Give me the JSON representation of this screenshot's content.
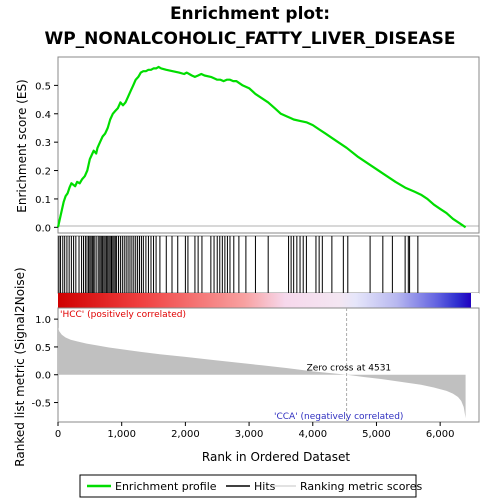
{
  "title_line1": "Enrichment plot:",
  "title_line2": "WP_NONALCOHOLIC_FATTY_LIVER_DISEASE",
  "colors": {
    "enrichment_line": "#00dd00",
    "hits": "#000000",
    "metric_fill": "#c0c0c0",
    "pos_label": "#e00000",
    "neg_label": "#3030c0",
    "zero_cross_line": "#aaaaaa",
    "ranking_legend": "#d8d8d8"
  },
  "chart_data": [
    {
      "type": "line",
      "name": "enrichment-profile",
      "ylabel": "Enrichment score (ES)",
      "xlim": [
        0,
        6500
      ],
      "ylim": [
        -0.02,
        0.6
      ],
      "yticks": [
        "0.0",
        "0.1",
        "0.2",
        "0.3",
        "0.4",
        "0.5"
      ],
      "ytick_values": [
        0.0,
        0.1,
        0.2,
        0.3,
        0.4,
        0.5
      ],
      "grid": false,
      "x": [
        0,
        30,
        60,
        90,
        120,
        150,
        180,
        210,
        240,
        270,
        300,
        340,
        380,
        420,
        460,
        500,
        520,
        540,
        560,
        600,
        620,
        660,
        700,
        740,
        780,
        820,
        860,
        900,
        940,
        980,
        1020,
        1060,
        1100,
        1140,
        1180,
        1220,
        1260,
        1300,
        1340,
        1380,
        1420,
        1460,
        1500,
        1540,
        1580,
        1620,
        1700,
        1800,
        1900,
        1980,
        2020,
        2060,
        2100,
        2150,
        2200,
        2250,
        2300,
        2400,
        2450,
        2500,
        2550,
        2600,
        2650,
        2700,
        2750,
        2800,
        2900,
        3000,
        3100,
        3200,
        3300,
        3400,
        3500,
        3600,
        3650,
        3700,
        3800,
        3900,
        4000,
        4100,
        4200,
        4300,
        4400,
        4531,
        4700,
        4900,
        5100,
        5300,
        5450,
        5500,
        5600,
        5700,
        5800,
        5900,
        6000,
        6100,
        6200,
        6300,
        6400
      ],
      "y": [
        0.0,
        0.03,
        0.06,
        0.09,
        0.11,
        0.12,
        0.14,
        0.155,
        0.15,
        0.145,
        0.16,
        0.155,
        0.17,
        0.18,
        0.2,
        0.24,
        0.25,
        0.26,
        0.27,
        0.26,
        0.28,
        0.3,
        0.32,
        0.33,
        0.35,
        0.38,
        0.4,
        0.41,
        0.42,
        0.44,
        0.43,
        0.44,
        0.46,
        0.48,
        0.5,
        0.52,
        0.53,
        0.545,
        0.55,
        0.55,
        0.555,
        0.555,
        0.56,
        0.56,
        0.565,
        0.56,
        0.555,
        0.55,
        0.545,
        0.54,
        0.545,
        0.54,
        0.535,
        0.53,
        0.535,
        0.54,
        0.535,
        0.53,
        0.525,
        0.52,
        0.52,
        0.515,
        0.52,
        0.52,
        0.515,
        0.515,
        0.5,
        0.49,
        0.47,
        0.455,
        0.44,
        0.42,
        0.4,
        0.39,
        0.385,
        0.38,
        0.375,
        0.37,
        0.36,
        0.345,
        0.33,
        0.315,
        0.3,
        0.28,
        0.25,
        0.22,
        0.19,
        0.16,
        0.14,
        0.135,
        0.125,
        0.115,
        0.1,
        0.08,
        0.065,
        0.05,
        0.03,
        0.015,
        0.0
      ]
    },
    {
      "type": "barcode",
      "name": "hits",
      "positions": [
        15,
        40,
        75,
        105,
        140,
        175,
        210,
        245,
        280,
        330,
        370,
        400,
        430,
        455,
        480,
        500,
        520,
        540,
        560,
        580,
        610,
        640,
        660,
        680,
        700,
        720,
        740,
        760,
        780,
        800,
        820,
        840,
        860,
        880,
        900,
        920,
        950,
        980,
        1010,
        1040,
        1070,
        1100,
        1130,
        1160,
        1190,
        1220,
        1250,
        1280,
        1310,
        1340,
        1380,
        1420,
        1460,
        1500,
        1540,
        1600,
        1700,
        1790,
        1880,
        2000,
        2040,
        2150,
        2200,
        2260,
        2400,
        2450,
        2500,
        2540,
        2580,
        2620,
        2660,
        2700,
        2760,
        2840,
        2950,
        3100,
        3300,
        3620,
        3660,
        3700,
        3750,
        3800,
        3850,
        3900,
        4050,
        4100,
        4150,
        4300,
        4480,
        4550,
        4900,
        5100,
        5250,
        5450,
        5500,
        5520,
        5650
      ]
    },
    {
      "type": "area",
      "name": "ranked-list-metric",
      "ylabel": "Ranked list metric (Signal2Noise)",
      "xlabel": "Rank in Ordered Dataset",
      "xlim": [
        0,
        6500
      ],
      "ylim": [
        -0.85,
        1.2
      ],
      "xticks": [
        "0",
        "1,000",
        "2,000",
        "3,000",
        "4,000",
        "5,000",
        "6,000"
      ],
      "xtick_values": [
        0,
        1000,
        2000,
        3000,
        4000,
        5000,
        6000
      ],
      "yticks": [
        "1.0",
        "0.5",
        "0.0",
        "-0.5"
      ],
      "ytick_values": [
        1.0,
        0.5,
        0.0,
        -0.5
      ],
      "x": [
        0,
        20,
        60,
        120,
        200,
        300,
        450,
        600,
        800,
        1000,
        1300,
        1600,
        2000,
        2400,
        2800,
        3200,
        3600,
        4000,
        4300,
        4531,
        4800,
        5100,
        5400,
        5700,
        5900,
        6100,
        6200,
        6280,
        6330,
        6370,
        6400
      ],
      "y": [
        0.85,
        0.78,
        0.72,
        0.67,
        0.63,
        0.6,
        0.56,
        0.53,
        0.49,
        0.46,
        0.41,
        0.37,
        0.32,
        0.27,
        0.22,
        0.17,
        0.12,
        0.06,
        0.025,
        0.0,
        -0.04,
        -0.08,
        -0.13,
        -0.18,
        -0.23,
        -0.29,
        -0.34,
        -0.4,
        -0.47,
        -0.58,
        -0.78
      ]
    }
  ],
  "annotations": {
    "zero_cross": "Zero cross at 4531",
    "zero_cross_value": 4531,
    "pos_corr": "'HCC' (positively correlated)",
    "neg_corr": "'CCA' (negatively correlated)"
  },
  "legend": {
    "items": [
      {
        "label": "Enrichment profile",
        "kind": "line-green"
      },
      {
        "label": "Hits",
        "kind": "line-black"
      },
      {
        "label": "Ranking metric scores",
        "kind": "line-gray"
      }
    ]
  }
}
